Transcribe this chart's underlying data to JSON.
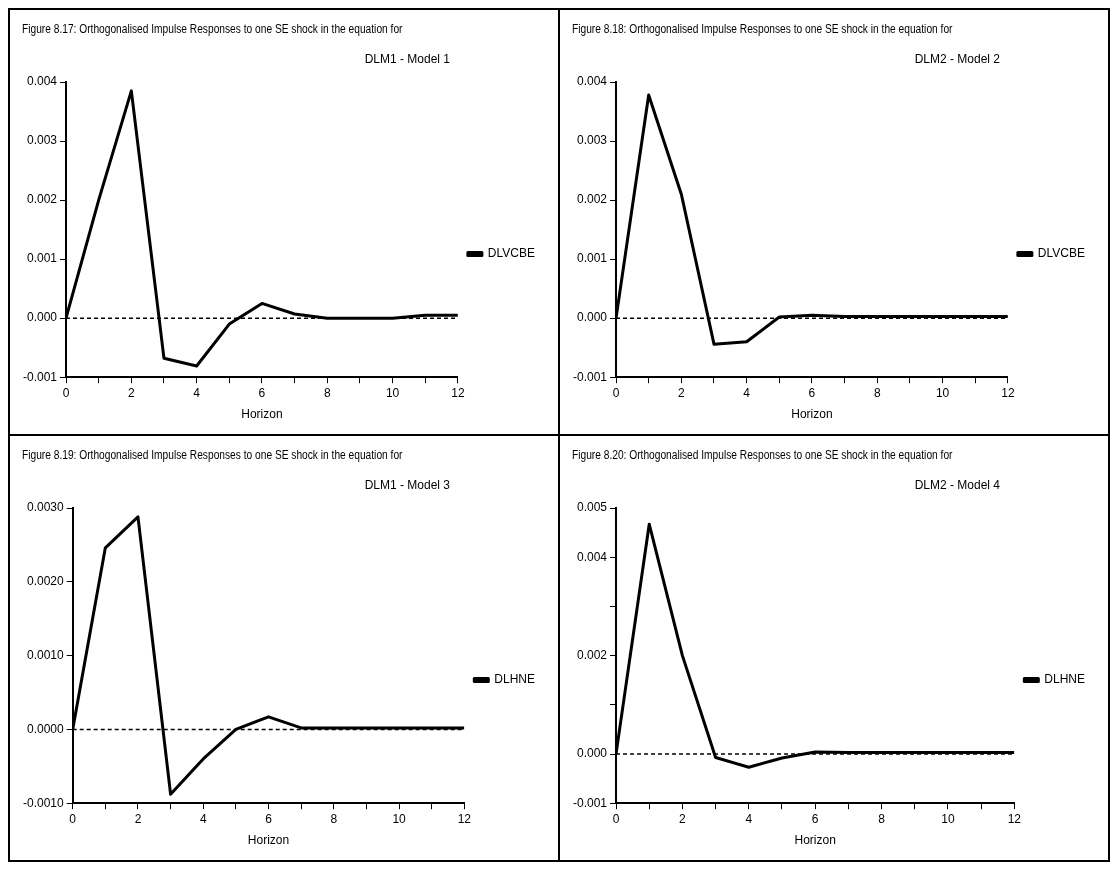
{
  "chart_data": [
    {
      "type": "line",
      "title": "Figure 8.17:  Orthogonalised Impulse Responses to one SE shock in the equation for",
      "subtitle": "DLM1 - Model 1",
      "xlabel": "Horizon",
      "x": [
        0,
        1,
        2,
        3,
        4,
        5,
        6,
        7,
        8,
        9,
        10,
        11,
        12
      ],
      "series": [
        {
          "name": "DLVCBE",
          "color": "#000000",
          "values": [
            0,
            0.002,
            0.00385,
            -0.00068,
            -0.00081,
            -0.0001,
            0.00025,
            7e-05,
            0,
            0,
            0,
            5e-05,
            5e-05
          ]
        }
      ],
      "xlim": [
        0,
        12
      ],
      "xticks": [
        0,
        {
          "value": 1,
          "label": null
        },
        2,
        {
          "value": 3,
          "label": null
        },
        4,
        {
          "value": 5,
          "label": null
        },
        6,
        {
          "value": 7,
          "label": null
        },
        8,
        {
          "value": 9,
          "label": null
        },
        10,
        {
          "value": 11,
          "label": null
        },
        12
      ],
      "ylim": [
        -0.001,
        0.004
      ],
      "yticks": [
        {
          "value": -0.001,
          "label": "-0.001"
        },
        {
          "value": 0,
          "label": "0.000"
        },
        {
          "value": 0.001,
          "label": "0.001"
        },
        {
          "value": 0.002,
          "label": "0.002"
        },
        {
          "value": 0.003,
          "label": "0.003"
        },
        {
          "value": 0.004,
          "label": "0.004"
        }
      ],
      "ref_lines": [
        {
          "axis": "y",
          "value": 0,
          "line_style": "dashed",
          "color": "#000000"
        }
      ],
      "grid": false,
      "legend": "right",
      "marker": "none",
      "line_style": "solid"
    },
    {
      "type": "line",
      "title": "Figure 8.18:  Orthogonalised Impulse Responses to one SE shock in the equation for",
      "subtitle": "DLM2 - Model 2",
      "xlabel": "Horizon",
      "x": [
        0,
        1,
        2,
        3,
        4,
        5,
        6,
        7,
        8,
        9,
        10,
        11,
        12
      ],
      "series": [
        {
          "name": "DLVCBE",
          "color": "#000000",
          "values": [
            0,
            0.00378,
            0.0021,
            -0.00044,
            -0.0004,
            2e-05,
            5e-05,
            3e-05,
            3e-05,
            3e-05,
            3e-05,
            3e-05,
            3e-05
          ]
        }
      ],
      "xlim": [
        0,
        12
      ],
      "xticks": [
        0,
        {
          "value": 1,
          "label": null
        },
        2,
        {
          "value": 3,
          "label": null
        },
        4,
        {
          "value": 5,
          "label": null
        },
        6,
        {
          "value": 7,
          "label": null
        },
        8,
        {
          "value": 9,
          "label": null
        },
        10,
        {
          "value": 11,
          "label": null
        },
        12
      ],
      "ylim": [
        -0.001,
        0.004
      ],
      "yticks": [
        {
          "value": -0.001,
          "label": "-0.001"
        },
        {
          "value": 0,
          "label": "0.000"
        },
        {
          "value": 0.001,
          "label": "0.001"
        },
        {
          "value": 0.002,
          "label": "0.002"
        },
        {
          "value": 0.003,
          "label": "0.003"
        },
        {
          "value": 0.004,
          "label": "0.004"
        }
      ],
      "ref_lines": [
        {
          "axis": "y",
          "value": 0,
          "line_style": "dashed",
          "color": "#000000"
        }
      ],
      "grid": false,
      "legend": "right",
      "marker": "none",
      "line_style": "solid"
    },
    {
      "type": "line",
      "title": "Figure 8.19:  Orthogonalised Impulse Responses to one SE shock in the equation for",
      "subtitle": "DLM1 - Model 3",
      "xlabel": "Horizon",
      "x": [
        0,
        1,
        2,
        3,
        4,
        5,
        6,
        7,
        8,
        9,
        10,
        11,
        12
      ],
      "series": [
        {
          "name": "DLHNE",
          "color": "#000000",
          "values": [
            0,
            0.00246,
            0.00288,
            -0.00088,
            -0.0004,
            0,
            0.00017,
            2e-05,
            2e-05,
            2e-05,
            2e-05,
            2e-05,
            2e-05
          ]
        }
      ],
      "xlim": [
        0,
        12
      ],
      "xticks": [
        0,
        {
          "value": 1,
          "label": null
        },
        2,
        {
          "value": 3,
          "label": null
        },
        4,
        {
          "value": 5,
          "label": null
        },
        6,
        {
          "value": 7,
          "label": null
        },
        8,
        {
          "value": 9,
          "label": null
        },
        10,
        {
          "value": 11,
          "label": null
        },
        12
      ],
      "ylim": [
        -0.001,
        0.003
      ],
      "yticks": [
        {
          "value": -0.001,
          "label": "-0.0010"
        },
        {
          "value": 0,
          "label": "0.0000"
        },
        {
          "value": 0.001,
          "label": "0.0010"
        },
        {
          "value": 0.002,
          "label": "0.0020"
        },
        {
          "value": 0.003,
          "label": "0.0030"
        }
      ],
      "ref_lines": [
        {
          "axis": "y",
          "value": 0,
          "line_style": "dashed",
          "color": "#000000"
        }
      ],
      "grid": false,
      "legend": "right",
      "marker": "none",
      "line_style": "solid"
    },
    {
      "type": "line",
      "title": "Figure 8.20:  Orthogonalised Impulse Responses to one SE shock in the equation for",
      "subtitle": "DLM2 - Model 4",
      "xlabel": "Horizon",
      "x": [
        0,
        1,
        2,
        3,
        4,
        5,
        6,
        7,
        8,
        9,
        10,
        11,
        12
      ],
      "series": [
        {
          "name": "DLHNE",
          "color": "#000000",
          "values": [
            0,
            0.00467,
            0.002,
            -7e-05,
            -0.00027,
            -8e-05,
            4e-05,
            3e-05,
            3e-05,
            3e-05,
            3e-05,
            3e-05,
            3e-05
          ]
        }
      ],
      "xlim": [
        0,
        12
      ],
      "xticks": [
        0,
        {
          "value": 1,
          "label": null
        },
        2,
        {
          "value": 3,
          "label": null
        },
        4,
        {
          "value": 5,
          "label": null
        },
        6,
        {
          "value": 7,
          "label": null
        },
        8,
        {
          "value": 9,
          "label": null
        },
        10,
        {
          "value": 11,
          "label": null
        },
        12
      ],
      "ylim": [
        -0.001,
        0.005
      ],
      "yticks": [
        {
          "value": -0.001,
          "label": "-0.001"
        },
        {
          "value": 0,
          "label": "0.000"
        },
        {
          "value": 0.001,
          "label": null
        },
        {
          "value": 0.002,
          "label": "0.002"
        },
        {
          "value": 0.003,
          "label": null
        },
        {
          "value": 0.004,
          "label": "0.004"
        },
        {
          "value": 0.005,
          "label": "0.005"
        }
      ],
      "ref_lines": [
        {
          "axis": "y",
          "value": 0,
          "line_style": "dashed",
          "color": "#000000"
        }
      ],
      "grid": false,
      "legend": "right",
      "marker": "none",
      "line_style": "solid"
    }
  ]
}
